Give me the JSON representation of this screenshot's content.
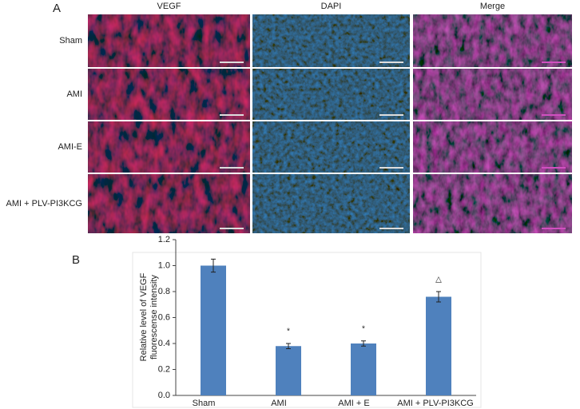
{
  "panel_a": {
    "label": "A",
    "columns": [
      "VEGF",
      "DAPI",
      "Merge"
    ],
    "rows": [
      "Sham",
      "AMI",
      "AMI-E",
      "AMI + PLV-PI3KCG"
    ]
  },
  "chart_data": {
    "type": "bar",
    "panel_label": "B",
    "y_label": [
      "Relative level of VEGF",
      "fluorescense intensity"
    ],
    "categories": [
      "Sham",
      "AMI",
      "AMI + E",
      "AMI + PLV-PI3KCG"
    ],
    "values": [
      1.0,
      0.38,
      0.4,
      0.76
    ],
    "errors": [
      0.05,
      0.02,
      0.02,
      0.04
    ],
    "annotations": [
      null,
      "*",
      "*",
      "△"
    ],
    "color": "#4f81bd",
    "ylim": [
      0,
      1.2
    ],
    "yticks": [
      {
        "value": 0,
        "label": "0.0"
      },
      {
        "value": 0.2,
        "label": "0.2"
      },
      {
        "value": 0.4,
        "label": "0.4"
      },
      {
        "value": 0.6,
        "label": "0.6"
      },
      {
        "value": 0.8,
        "label": "0.8"
      },
      {
        "value": 1.0,
        "label": "1.0"
      },
      {
        "value": 1.2,
        "label": "1.2"
      }
    ]
  }
}
